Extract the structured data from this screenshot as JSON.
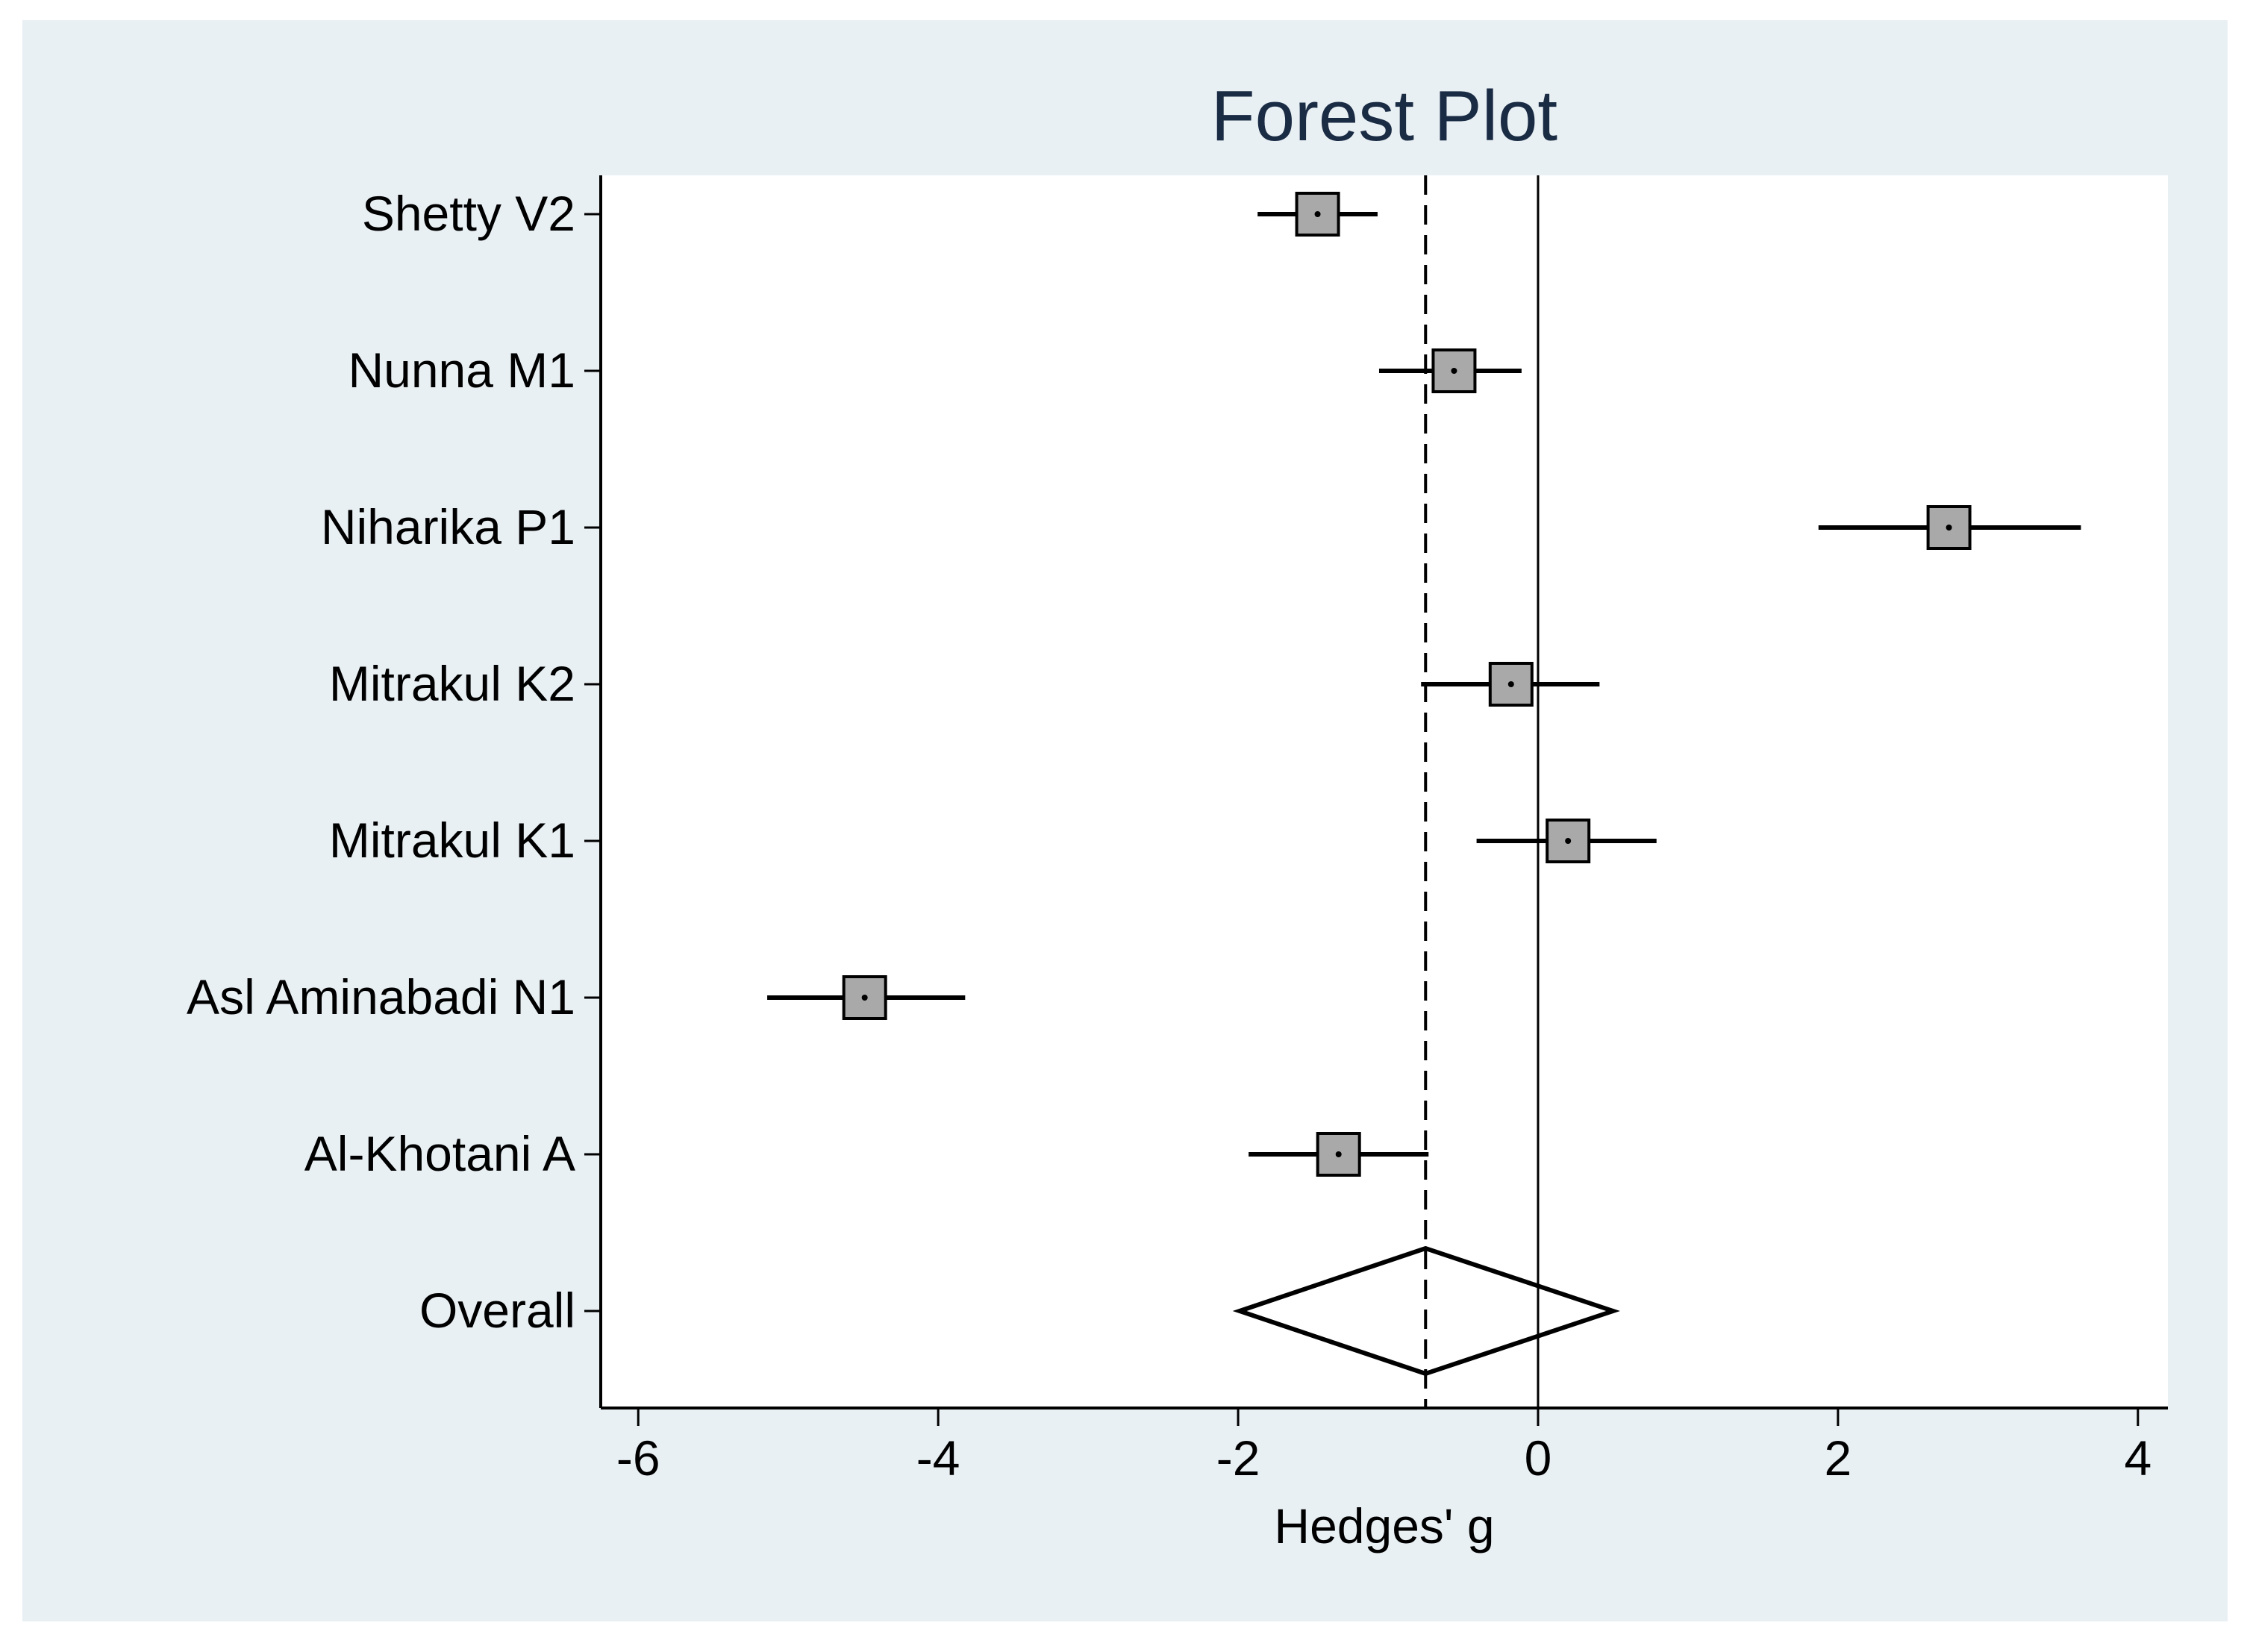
{
  "colors": {
    "page_bg": "#ffffff",
    "frame_bg": "#e9f0f4",
    "plot_bg": "#ffffff",
    "title": "#1a2b44",
    "text": "#000000",
    "box_fill": "#a9a9a9",
    "line": "#000000"
  },
  "chart_data": {
    "type": "forest",
    "title": "Forest Plot",
    "xlabel": "Hedges' g",
    "ylabel": "",
    "xlim": [
      -6.25,
      4.2
    ],
    "xticks": [
      -6,
      -4,
      -2,
      0,
      2,
      4
    ],
    "xtick_labels": [
      "-6",
      "-4",
      "-2",
      "0",
      "2",
      "4"
    ],
    "null_line": 0,
    "overall_line": -0.75,
    "studies": [
      {
        "name": "Shetty V2",
        "g": -1.47,
        "lower": -1.87,
        "upper": -1.07
      },
      {
        "name": "Nunna M1",
        "g": -0.56,
        "lower": -1.06,
        "upper": -0.11
      },
      {
        "name": "Niharika P1",
        "g": 2.74,
        "lower": 1.87,
        "upper": 3.62
      },
      {
        "name": "Mitrakul K2",
        "g": -0.18,
        "lower": -0.78,
        "upper": 0.41
      },
      {
        "name": "Mitrakul K1",
        "g": 0.2,
        "lower": -0.41,
        "upper": 0.79
      },
      {
        "name": "Asl Aminabadi N1",
        "g": -4.49,
        "lower": -5.14,
        "upper": -3.82
      },
      {
        "name": "Al-Khotani A",
        "g": -1.33,
        "lower": -1.93,
        "upper": -0.73
      }
    ],
    "overall": {
      "name": "Overall",
      "g": -0.75,
      "lower": -1.99,
      "upper": 0.5
    }
  }
}
